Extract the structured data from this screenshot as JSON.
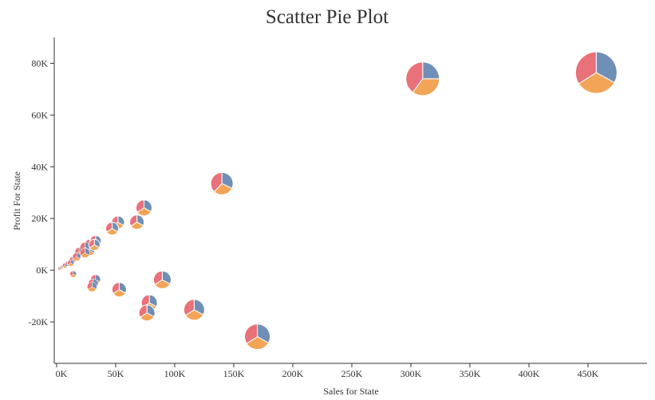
{
  "chart_data": {
    "type": "scatter",
    "title": "Scatter Pie Plot",
    "xlabel": "Sales for State",
    "ylabel": "Profit For State",
    "xlim": [
      -2000,
      500000
    ],
    "ylim": [
      -36000,
      90000
    ],
    "x_ticks": [
      0,
      50000,
      100000,
      150000,
      200000,
      250000,
      300000,
      350000,
      400000,
      450000
    ],
    "x_tick_labels": [
      "0K",
      "50K",
      "100K",
      "150K",
      "200K",
      "250K",
      "300K",
      "350K",
      "400K",
      "450K"
    ],
    "y_ticks": [
      -20000,
      0,
      20000,
      40000,
      60000,
      80000
    ],
    "y_tick_labels": [
      "-20K",
      "0K",
      "20K",
      "40K",
      "60K",
      "80K"
    ],
    "grid": false,
    "slice_colors": [
      "#6f8fb6",
      "#f2a556",
      "#e8717a"
    ],
    "points": [
      {
        "x": 457000,
        "y": 76400,
        "size": 26,
        "slices": [
          0.33,
          0.33,
          0.34
        ]
      },
      {
        "x": 310000,
        "y": 74000,
        "size": 21,
        "slices": [
          0.25,
          0.35,
          0.4
        ]
      },
      {
        "x": 170000,
        "y": -25700,
        "size": 16,
        "slices": [
          0.33,
          0.33,
          0.34
        ]
      },
      {
        "x": 140000,
        "y": 33500,
        "size": 14,
        "slices": [
          0.32,
          0.3,
          0.38
        ]
      },
      {
        "x": 116500,
        "y": -15300,
        "size": 13,
        "slices": [
          0.33,
          0.33,
          0.34
        ]
      },
      {
        "x": 89500,
        "y": -3700,
        "size": 11,
        "slices": [
          0.33,
          0.33,
          0.34
        ]
      },
      {
        "x": 78500,
        "y": -12600,
        "size": 10,
        "slices": [
          0.33,
          0.33,
          0.34
        ]
      },
      {
        "x": 76500,
        "y": -16500,
        "size": 10,
        "slices": [
          0.33,
          0.33,
          0.34
        ]
      },
      {
        "x": 74000,
        "y": 24100,
        "size": 10,
        "slices": [
          0.33,
          0.33,
          0.34
        ]
      },
      {
        "x": 68000,
        "y": 18600,
        "size": 9,
        "slices": [
          0.33,
          0.33,
          0.34
        ]
      },
      {
        "x": 52000,
        "y": 18500,
        "size": 8,
        "slices": [
          0.33,
          0.33,
          0.34
        ]
      },
      {
        "x": 47000,
        "y": 16100,
        "size": 8,
        "slices": [
          0.33,
          0.33,
          0.34
        ]
      },
      {
        "x": 53000,
        "y": -7500,
        "size": 9,
        "slices": [
          0.33,
          0.33,
          0.34
        ]
      },
      {
        "x": 33000,
        "y": 11300,
        "size": 7,
        "slices": [
          0.33,
          0.33,
          0.34
        ]
      },
      {
        "x": 32000,
        "y": 9800,
        "size": 7,
        "slices": [
          0.33,
          0.33,
          0.34
        ]
      },
      {
        "x": 28000,
        "y": 10000,
        "size": 6,
        "slices": [
          0.33,
          0.33,
          0.34
        ]
      },
      {
        "x": 28000,
        "y": 7600,
        "size": 6,
        "slices": [
          0.33,
          0.33,
          0.34
        ]
      },
      {
        "x": 24000,
        "y": 8900,
        "size": 6,
        "slices": [
          0.33,
          0.33,
          0.34
        ]
      },
      {
        "x": 24000,
        "y": 6700,
        "size": 6,
        "slices": [
          0.33,
          0.33,
          0.34
        ]
      },
      {
        "x": 19000,
        "y": 7200,
        "size": 5,
        "slices": [
          0.33,
          0.33,
          0.34
        ]
      },
      {
        "x": 17000,
        "y": 5200,
        "size": 5,
        "slices": [
          0.33,
          0.33,
          0.34
        ]
      },
      {
        "x": 13500,
        "y": 3900,
        "size": 4,
        "slices": [
          0.33,
          0.33,
          0.34
        ]
      },
      {
        "x": 12000,
        "y": 2800,
        "size": 4,
        "slices": [
          0.33,
          0.33,
          0.34
        ]
      },
      {
        "x": 9000,
        "y": 2400,
        "size": 3,
        "slices": [
          0.33,
          0.33,
          0.34
        ]
      },
      {
        "x": 7000,
        "y": 1800,
        "size": 3,
        "slices": [
          0.33,
          0.33,
          0.34
        ]
      },
      {
        "x": 4500,
        "y": 1200,
        "size": 2,
        "slices": [
          0.33,
          0.33,
          0.34
        ]
      },
      {
        "x": 2500,
        "y": 600,
        "size": 2,
        "slices": [
          0.33,
          0.33,
          0.34
        ]
      },
      {
        "x": 14000,
        "y": -1500,
        "size": 4,
        "slices": [
          0.33,
          0.33,
          0.34
        ]
      },
      {
        "x": 33000,
        "y": -3600,
        "size": 6,
        "slices": [
          0.33,
          0.33,
          0.34
        ]
      },
      {
        "x": 31000,
        "y": -5200,
        "size": 6,
        "slices": [
          0.33,
          0.33,
          0.34
        ]
      },
      {
        "x": 30000,
        "y": -6400,
        "size": 6,
        "slices": [
          0.33,
          0.33,
          0.34
        ]
      }
    ]
  }
}
